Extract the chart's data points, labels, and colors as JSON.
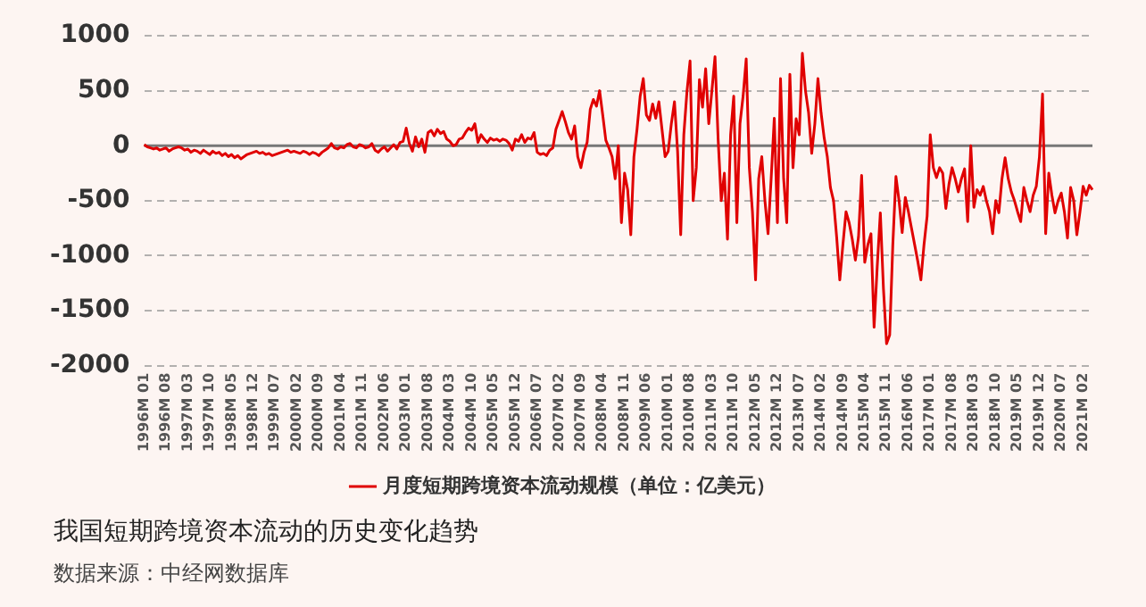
{
  "chart_data": {
    "type": "line",
    "title": "我国短期跨境资本流动的历史变化趋势",
    "annotations": [
      "数据来源：中经网数据库"
    ],
    "categories": [
      "1996M 01",
      null,
      null,
      null,
      null,
      null,
      null,
      "1996M 08",
      null,
      null,
      null,
      null,
      null,
      null,
      "1997M 03",
      null,
      null,
      null,
      null,
      null,
      null,
      "1997M 10",
      null,
      null,
      null,
      null,
      null,
      null,
      "1998M 05",
      null,
      null,
      null,
      null,
      null,
      null,
      "1998M 12",
      null,
      null,
      null,
      null,
      null,
      null,
      "1999M 07",
      null,
      null,
      null,
      null,
      null,
      null,
      "2000M 02",
      null,
      null,
      null,
      null,
      null,
      null,
      "2000M 09",
      null,
      null,
      null,
      null,
      null,
      null,
      "2001M 04",
      null,
      null,
      null,
      null,
      null,
      null,
      "2001M 11",
      null,
      null,
      null,
      null,
      null,
      null,
      "2002M 06",
      null,
      null,
      null,
      null,
      null,
      null,
      "2003M 01",
      null,
      null,
      null,
      null,
      null,
      null,
      "2003M 08",
      null,
      null,
      null,
      null,
      null,
      null,
      "2004M 03",
      null,
      null,
      null,
      null,
      null,
      null,
      "2004M 10",
      null,
      null,
      null,
      null,
      null,
      null,
      "2005M 05",
      null,
      null,
      null,
      null,
      null,
      null,
      "2005M 12",
      null,
      null,
      null,
      null,
      null,
      null,
      "2006M 07",
      null,
      null,
      null,
      null,
      null,
      null,
      "2007M 02",
      null,
      null,
      null,
      null,
      null,
      null,
      "2007M 09",
      null,
      null,
      null,
      null,
      null,
      null,
      "2008M 04",
      null,
      null,
      null,
      null,
      null,
      null,
      "2008M 11",
      null,
      null,
      null,
      null,
      null,
      null,
      "2009M 06",
      null,
      null,
      null,
      null,
      null,
      null,
      "2010M 01",
      null,
      null,
      null,
      null,
      null,
      null,
      "2010M 08",
      null,
      null,
      null,
      null,
      null,
      null,
      "2011M 03",
      null,
      null,
      null,
      null,
      null,
      null,
      "2011M 10",
      null,
      null,
      null,
      null,
      null,
      null,
      "2012M 05",
      null,
      null,
      null,
      null,
      null,
      null,
      "2012M 12",
      null,
      null,
      null,
      null,
      null,
      null,
      "2013M 07",
      null,
      null,
      null,
      null,
      null,
      null,
      "2014M 02",
      null,
      null,
      null,
      null,
      null,
      null,
      "2014M 09",
      null,
      null,
      null,
      null,
      null,
      null,
      "2015M 04",
      null,
      null,
      null,
      null,
      null,
      null,
      "2015M 11",
      null,
      null,
      null,
      null,
      null,
      null,
      "2016M 06",
      null,
      null,
      null,
      null,
      null,
      null,
      "2017M 01",
      null,
      null,
      null,
      null,
      null,
      null,
      "2017M 08",
      null,
      null,
      null,
      null,
      null,
      null,
      "2018M 03",
      null,
      null,
      null,
      null,
      null,
      null,
      "2018M 10",
      null,
      null,
      null,
      null,
      null,
      null,
      "2019M 05",
      null,
      null,
      null,
      null,
      null,
      null,
      "2019M 12",
      null,
      null,
      null,
      null,
      null,
      null,
      "2020M 07",
      null,
      null,
      null,
      null,
      null,
      null,
      "2021M 02",
      null,
      null,
      null
    ],
    "series": [
      {
        "name": "月度短期跨境资本流动规模（单位：亿美元）",
        "color": "#e00000",
        "values": [
          10,
          -10,
          -20,
          -30,
          -20,
          -40,
          -30,
          -20,
          -50,
          -30,
          -20,
          -10,
          -20,
          -40,
          -30,
          -60,
          -40,
          -50,
          -70,
          -40,
          -60,
          -80,
          -50,
          -70,
          -60,
          -90,
          -70,
          -100,
          -80,
          -110,
          -90,
          -120,
          -100,
          -80,
          -70,
          -60,
          -50,
          -70,
          -60,
          -80,
          -70,
          -90,
          -80,
          -70,
          -60,
          -50,
          -40,
          -60,
          -50,
          -60,
          -70,
          -50,
          -60,
          -80,
          -60,
          -70,
          -90,
          -60,
          -40,
          -20,
          20,
          -20,
          -30,
          -10,
          -20,
          10,
          20,
          -10,
          -20,
          10,
          0,
          -20,
          -10,
          20,
          -40,
          -60,
          -30,
          -10,
          -50,
          -20,
          10,
          -30,
          30,
          40,
          160,
          20,
          -50,
          80,
          -10,
          60,
          -60,
          120,
          140,
          90,
          150,
          110,
          130,
          60,
          40,
          0,
          10,
          60,
          70,
          120,
          160,
          140,
          200,
          30,
          100,
          60,
          30,
          70,
          50,
          60,
          40,
          60,
          50,
          20,
          -40,
          60,
          40,
          100,
          30,
          70,
          60,
          120,
          -60,
          -80,
          -70,
          -90,
          -40,
          -20,
          150,
          230,
          310,
          220,
          120,
          60,
          180,
          -100,
          -200,
          -60,
          30,
          330,
          420,
          360,
          500,
          280,
          50,
          -20,
          -100,
          -300,
          0,
          -700,
          -250,
          -400,
          -810,
          -100,
          150,
          450,
          610,
          280,
          230,
          380,
          250,
          400,
          150,
          -100,
          -50,
          200,
          400,
          -50,
          -810,
          100,
          490,
          770,
          -500,
          -200,
          600,
          350,
          700,
          200,
          500,
          810,
          60,
          -500,
          -250,
          -850,
          100,
          450,
          -700,
          200,
          450,
          790,
          -200,
          -600,
          -1220,
          -300,
          -100,
          -500,
          -800,
          -300,
          250,
          -700,
          610,
          -300,
          -700,
          650,
          -200,
          245,
          100,
          840,
          500,
          300,
          -70,
          200,
          610,
          300,
          70,
          -100,
          -380,
          -500,
          -830,
          -1220,
          -900,
          -600,
          -700,
          -850,
          -1040,
          -830,
          -270,
          -1060,
          -900,
          -800,
          -1650,
          -1100,
          -610,
          -1300,
          -1800,
          -1720,
          -900,
          -280,
          -500,
          -790,
          -470,
          -600,
          -750,
          -900,
          -1050,
          -1220,
          -900,
          -640,
          100,
          -200,
          -290,
          -200,
          -250,
          -570,
          -350,
          -200,
          -300,
          -420,
          -300,
          -210,
          -690,
          0,
          -560,
          -400,
          -450,
          -370,
          -500,
          -600,
          -800,
          -500,
          -610,
          -300,
          -110,
          -300,
          -420,
          -500,
          -600,
          -690,
          -380,
          -500,
          -600,
          -450,
          -370,
          -100,
          470,
          -800,
          -250,
          -450,
          -610,
          -500,
          -430,
          -600,
          -840,
          -380,
          -500,
          -810,
          -600,
          -370,
          -450,
          -360,
          -400
        ]
      }
    ],
    "ylim": [
      -2000,
      1000
    ],
    "yticks": [
      -2000,
      -1500,
      -1000,
      -500,
      0,
      500,
      1000
    ],
    "ref_lines": [
      {
        "axis": "y",
        "value": 0,
        "color": "#777777"
      }
    ],
    "grid": "y",
    "legend": "bottom",
    "marker": "none",
    "line_style": "solid"
  }
}
